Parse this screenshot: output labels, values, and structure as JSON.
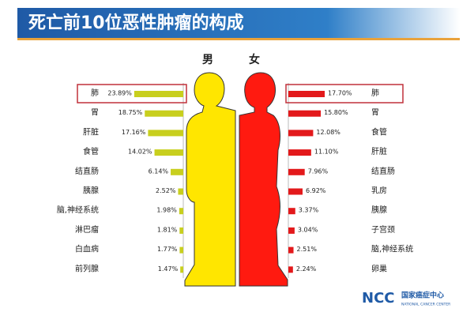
{
  "header": {
    "title": "死亡前10位恶性肿瘤的构成"
  },
  "logo": {
    "mark": "NCC",
    "name": "国家癌症中心",
    "subtitle": "NATIONAL CANCER CENTER"
  },
  "chart_data": [
    {
      "type": "hbar-left",
      "title": "男",
      "color": "#c8cf1e",
      "categories": [
        "肺",
        "胃",
        "肝脏",
        "食管",
        "结直肠",
        "胰腺",
        "脑,神经系统",
        "淋巴瘤",
        "白血病",
        "前列腺"
      ],
      "values": [
        23.89,
        18.75,
        17.16,
        14.02,
        6.14,
        2.52,
        1.98,
        1.81,
        1.77,
        1.47
      ],
      "value_labels": [
        "23.89%",
        "18.75%",
        "17.16%",
        "14.02%",
        "6.14%",
        "2.52%",
        "1.98%",
        "1.81%",
        "1.77%",
        "1.47%"
      ]
    },
    {
      "type": "hbar-right",
      "title": "女",
      "color": "#e3191b",
      "categories": [
        "肺",
        "胃",
        "食管",
        "肝脏",
        "结直肠",
        "乳房",
        "胰腺",
        "子宫颈",
        "脑,神经系统",
        "卵巢"
      ],
      "values": [
        17.7,
        15.8,
        12.08,
        11.1,
        7.96,
        6.92,
        3.37,
        3.04,
        2.51,
        2.24
      ],
      "value_labels": [
        "17.70%",
        "15.80%",
        "12.08%",
        "11.10%",
        "7.96%",
        "6.92%",
        "3.37%",
        "3.04%",
        "2.51%",
        "2.24%"
      ]
    }
  ]
}
